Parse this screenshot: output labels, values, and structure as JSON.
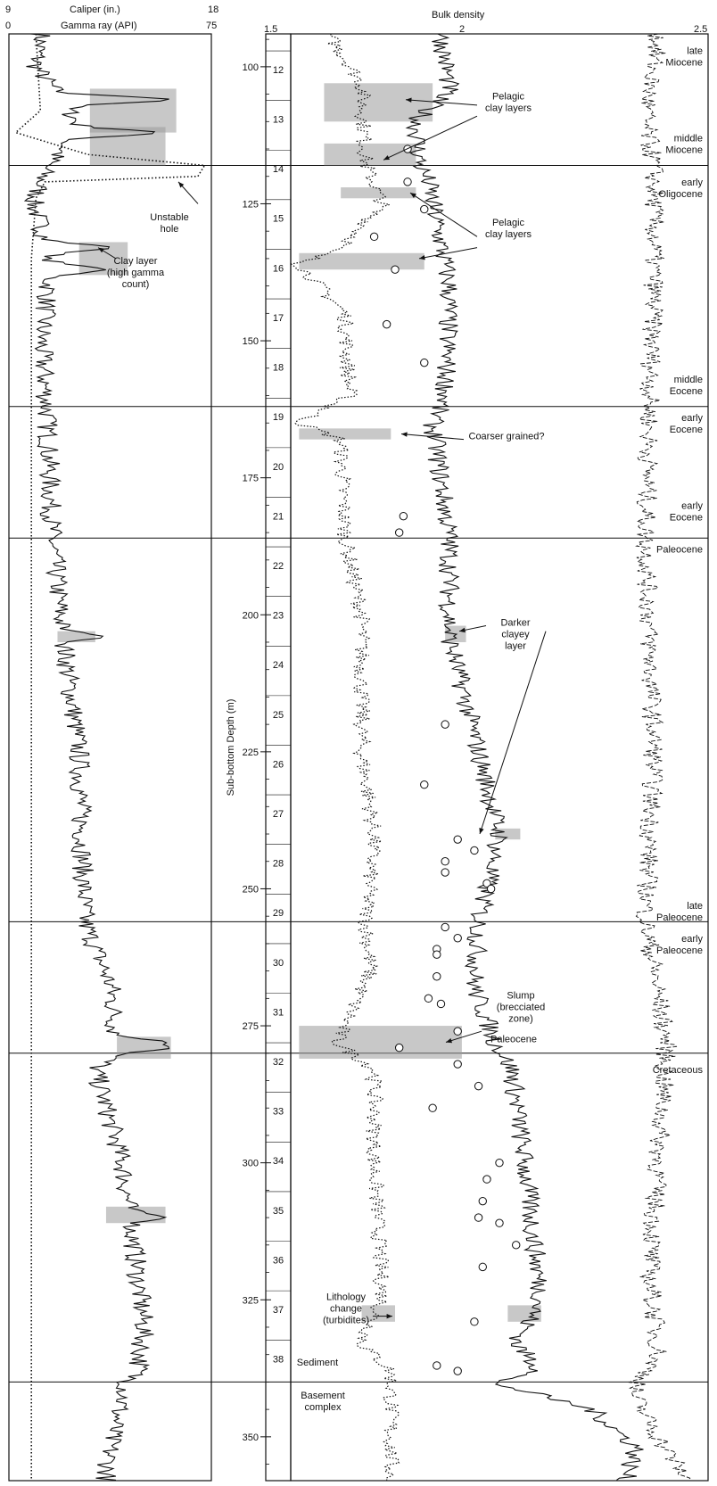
{
  "chart_data": {
    "type": "line",
    "y_axis": {
      "label": "Sub-bottom Depth (m)",
      "ticks": [
        100,
        125,
        150,
        175,
        200,
        225,
        250,
        275,
        300,
        325,
        350
      ],
      "range": [
        94,
        358
      ],
      "inverted": true
    },
    "left_panel": {
      "caliper": {
        "label": "Caliper (in.)",
        "min": 9,
        "max": 18
      },
      "gamma": {
        "label": "Gamma ray (API)",
        "min": 0,
        "max": 75
      }
    },
    "right_panel": {
      "density": {
        "label": "Bulk density",
        "min": 1.5,
        "mid": 2.0,
        "max": 2.5
      }
    },
    "cores": [
      "12",
      "13",
      "14",
      "15",
      "16",
      "17",
      "18",
      "19",
      "20",
      "21",
      "22",
      "23",
      "24",
      "25",
      "26",
      "27",
      "28",
      "29",
      "30",
      "31",
      "32",
      "33",
      "34",
      "35",
      "36",
      "37",
      "38"
    ],
    "stage_boundaries": [
      {
        "depth": 118,
        "label": ""
      },
      {
        "depth": 162,
        "label": ""
      },
      {
        "depth": 186,
        "label": ""
      },
      {
        "depth": 256,
        "label": ""
      },
      {
        "depth": 280,
        "label": ""
      },
      {
        "depth": 340,
        "label": ""
      }
    ],
    "stages": [
      {
        "depth": 97,
        "lines": [
          "late",
          "Miocene"
        ]
      },
      {
        "depth": 113,
        "lines": [
          "middle",
          "Miocene"
        ]
      },
      {
        "depth": 121,
        "lines": [
          "early",
          "Oligocene"
        ]
      },
      {
        "depth": 157,
        "lines": [
          "middle",
          "Eocene"
        ]
      },
      {
        "depth": 164,
        "lines": [
          "early",
          "Eocene"
        ]
      },
      {
        "depth": 180,
        "lines": [
          "early",
          "Eocene"
        ]
      },
      {
        "depth": 188,
        "lines": [
          "Paleocene"
        ]
      },
      {
        "depth": 253,
        "lines": [
          "late",
          "Paleocene"
        ]
      },
      {
        "depth": 259,
        "lines": [
          "early",
          "Paleocene"
        ]
      },
      {
        "depth": 283,
        "lines": [
          "Cretaceous"
        ]
      }
    ],
    "annotations": [
      {
        "id": "pelagic1",
        "depth": 106,
        "lines": [
          "Pelagic",
          "clay layers"
        ]
      },
      {
        "id": "pelagic2",
        "depth": 129,
        "lines": [
          "Pelagic",
          "clay layers"
        ]
      },
      {
        "id": "unstable",
        "depth": 128,
        "lines": [
          "Unstable",
          "hole"
        ]
      },
      {
        "id": "claylayer",
        "depth": 136,
        "lines": [
          "Clay layer",
          "(high gamma",
          "count)"
        ]
      },
      {
        "id": "coarser",
        "depth": 168,
        "lines": [
          "Coarser grained?"
        ]
      },
      {
        "id": "darker",
        "depth": 202,
        "lines": [
          "Darker",
          "clayey",
          "layer"
        ]
      },
      {
        "id": "slump",
        "depth": 270,
        "lines": [
          "Slump",
          "(brecciated",
          "zone)"
        ]
      },
      {
        "id": "paleo_slump",
        "depth": 278,
        "lines": [
          "Paleocene"
        ]
      },
      {
        "id": "lithology",
        "depth": 325,
        "lines": [
          "Lithology",
          "change",
          "(turbidites)"
        ]
      },
      {
        "id": "sediment",
        "depth": 337,
        "lines": [
          "Sediment"
        ]
      },
      {
        "id": "basement",
        "depth": 343,
        "lines": [
          "Basement",
          "complex"
        ]
      }
    ],
    "gamma_trend": [
      [
        94,
        12
      ],
      [
        100,
        10
      ],
      [
        105,
        18
      ],
      [
        110,
        25
      ],
      [
        115,
        20
      ],
      [
        118,
        14
      ],
      [
        125,
        9
      ],
      [
        135,
        16
      ],
      [
        150,
        12
      ],
      [
        162,
        14
      ],
      [
        186,
        16
      ],
      [
        204,
        20
      ],
      [
        225,
        26
      ],
      [
        256,
        28
      ],
      [
        268,
        38
      ],
      [
        280,
        40
      ],
      [
        283,
        32
      ],
      [
        300,
        42
      ],
      [
        310,
        45
      ],
      [
        330,
        50
      ],
      [
        338,
        48
      ],
      [
        340,
        44
      ],
      [
        350,
        38
      ],
      [
        358,
        36
      ]
    ],
    "gamma_peaks": [
      [
        106,
        60
      ],
      [
        112,
        55
      ],
      [
        133,
        38
      ],
      [
        137,
        36
      ],
      [
        204,
        35
      ],
      [
        278,
        58
      ],
      [
        279,
        60
      ],
      [
        310,
        58
      ]
    ],
    "caliper_trend": [
      [
        94,
        10.2
      ],
      [
        108,
        10.4
      ],
      [
        112,
        9.3
      ],
      [
        116,
        12.5
      ],
      [
        118,
        17.7
      ],
      [
        120,
        17.4
      ],
      [
        121,
        10.6
      ],
      [
        124,
        10.2
      ],
      [
        135,
        10.0
      ],
      [
        358,
        10.0
      ]
    ],
    "density_dotted": [
      [
        94,
        1.59
      ],
      [
        103,
        1.67
      ],
      [
        118,
        1.68
      ],
      [
        125,
        1.72
      ],
      [
        132,
        1.64
      ],
      [
        136,
        1.52
      ],
      [
        145,
        1.63
      ],
      [
        160,
        1.64
      ],
      [
        165,
        1.52
      ],
      [
        168,
        1.62
      ],
      [
        186,
        1.63
      ],
      [
        200,
        1.67
      ],
      [
        225,
        1.67
      ],
      [
        240,
        1.7
      ],
      [
        256,
        1.68
      ],
      [
        265,
        1.69
      ],
      [
        278,
        1.61
      ],
      [
        283,
        1.7
      ],
      [
        300,
        1.7
      ],
      [
        325,
        1.72
      ],
      [
        333,
        1.67
      ],
      [
        338,
        1.74
      ]
    ],
    "density_solid": [
      [
        94,
        1.86
      ],
      [
        104,
        1.88
      ],
      [
        110,
        1.8
      ],
      [
        118,
        1.81
      ],
      [
        121,
        1.83
      ],
      [
        125,
        1.84
      ],
      [
        140,
        1.88
      ],
      [
        160,
        1.87
      ],
      [
        165,
        1.84
      ],
      [
        186,
        1.88
      ],
      [
        204,
        1.88
      ],
      [
        225,
        1.95
      ],
      [
        240,
        2.0
      ],
      [
        256,
        1.95
      ],
      [
        268,
        1.94
      ],
      [
        278,
        1.99
      ],
      [
        283,
        2.03
      ],
      [
        300,
        2.06
      ],
      [
        325,
        2.1
      ],
      [
        333,
        2.04
      ],
      [
        338,
        2.1
      ],
      [
        340,
        1.98
      ],
      [
        345,
        2.22
      ],
      [
        352,
        2.33
      ],
      [
        358,
        2.3
      ]
    ],
    "density_right": [
      [
        94,
        2.38
      ],
      [
        104,
        2.36
      ],
      [
        110,
        2.35
      ],
      [
        118,
        2.37
      ],
      [
        140,
        2.37
      ],
      [
        162,
        2.36
      ],
      [
        186,
        2.35
      ],
      [
        225,
        2.37
      ],
      [
        256,
        2.35
      ],
      [
        278,
        2.4
      ],
      [
        300,
        2.38
      ],
      [
        320,
        2.36
      ],
      [
        335,
        2.38
      ],
      [
        342,
        2.32
      ],
      [
        350,
        2.38
      ],
      [
        358,
        2.45
      ]
    ],
    "core_points": [
      [
        115,
        1.78
      ],
      [
        121,
        1.78
      ],
      [
        126,
        1.82
      ],
      [
        131,
        1.7
      ],
      [
        137,
        1.75
      ],
      [
        147,
        1.73
      ],
      [
        154,
        1.82
      ],
      [
        182,
        1.77
      ],
      [
        185,
        1.76
      ],
      [
        220,
        1.87
      ],
      [
        231,
        1.82
      ],
      [
        241,
        1.9
      ],
      [
        243,
        1.94
      ],
      [
        245,
        1.87
      ],
      [
        247,
        1.87
      ],
      [
        249,
        1.97
      ],
      [
        250,
        1.98
      ],
      [
        257,
        1.87
      ],
      [
        259,
        1.9
      ],
      [
        261,
        1.85
      ],
      [
        262,
        1.85
      ],
      [
        266,
        1.85
      ],
      [
        270,
        1.83
      ],
      [
        271,
        1.86
      ],
      [
        276,
        1.9
      ],
      [
        279,
        1.76
      ],
      [
        282,
        1.9
      ],
      [
        286,
        1.95
      ],
      [
        290,
        1.84
      ],
      [
        300,
        2.0
      ],
      [
        303,
        1.97
      ],
      [
        307,
        1.96
      ],
      [
        310,
        1.95
      ],
      [
        311,
        2.0
      ],
      [
        315,
        2.04
      ],
      [
        319,
        1.96
      ],
      [
        329,
        1.94
      ],
      [
        337,
        1.85
      ],
      [
        338,
        1.9
      ]
    ]
  }
}
